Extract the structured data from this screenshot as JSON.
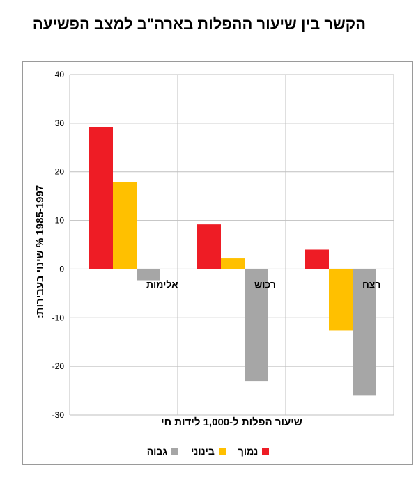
{
  "chart_data": {
    "type": "bar",
    "title": "הקשר בין שיעור ההפלות בארה\"ב למצב הפשיעה",
    "xlabel": "שיעור הפלות ל-1,000 לידות חי",
    "ylabel": "1985-1997 % שינוי בעבירות:",
    "ylim": [
      -30,
      40
    ],
    "yticks": [
      -30,
      -20,
      -10,
      0,
      10,
      20,
      30,
      40
    ],
    "grid": true,
    "legend_position": "bottom",
    "categories": [
      "אלימות",
      "רכוש",
      "רצח"
    ],
    "series": [
      {
        "name": "נמוך",
        "color": "#ee1c25",
        "values": [
          29.2,
          9.2,
          4.0
        ]
      },
      {
        "name": "בינוני",
        "color": "#ffc000",
        "values": [
          17.9,
          2.2,
          -12.6
        ]
      },
      {
        "name": "גבוה",
        "color": "#a6a6a6",
        "values": [
          -2.3,
          -23.0,
          -25.9
        ]
      }
    ]
  }
}
